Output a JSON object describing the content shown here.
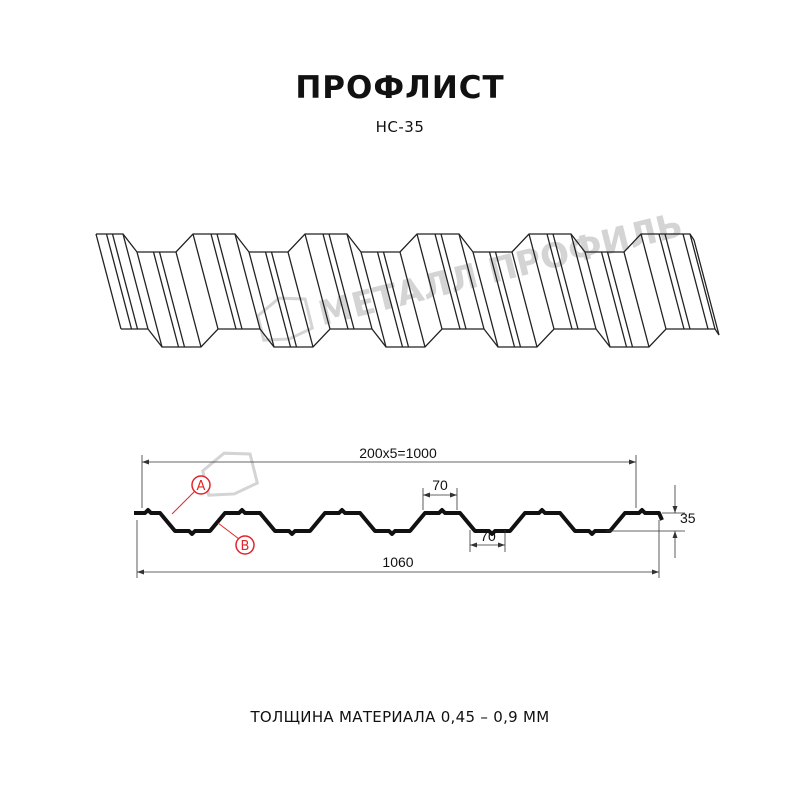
{
  "header": {
    "title": "ПРОФЛИСТ",
    "model": "НС-35"
  },
  "watermark": {
    "text": "МЕТАЛЛ ПРОФИЛЬ"
  },
  "drawing": {
    "dim_pitch_total": "200x5=1000",
    "dim_top_flat": "70",
    "dim_bottom_flat": "70",
    "dim_height": "35",
    "dim_full_width": "1060",
    "marker_a": "A",
    "marker_b": "B",
    "marker_color": "#e0252b"
  },
  "footer": {
    "thickness": "ТОЛЩИНА МАТЕРИАЛА 0,45 – 0,9 ММ"
  }
}
